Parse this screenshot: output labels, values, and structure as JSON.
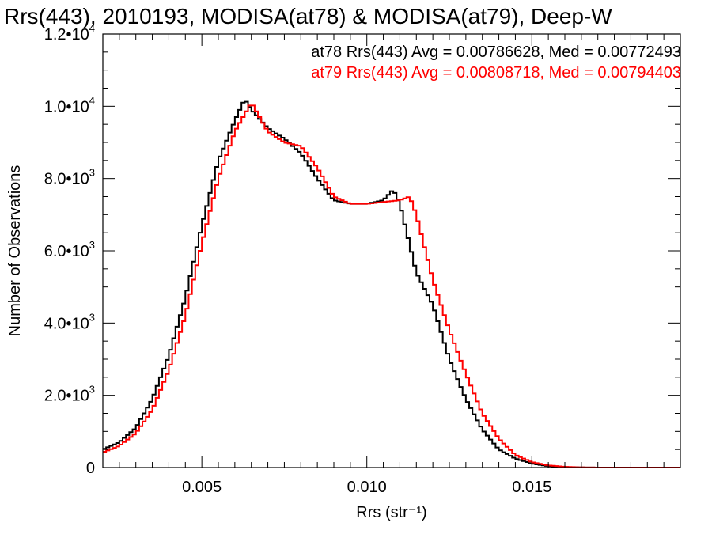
{
  "chart_data": {
    "type": "line",
    "title": "Rrs(443), 2010193, MODISA(at78) & MODISA(at79), Deep-W",
    "xlabel": "Rrs (str⁻¹)",
    "ylabel": "Number of Observations",
    "xlim": [
      0.002,
      0.0195
    ],
    "ylim": [
      0,
      12000
    ],
    "xticks": [
      {
        "value": 0.005,
        "label": "0.005"
      },
      {
        "value": 0.01,
        "label": "0.010"
      },
      {
        "value": 0.015,
        "label": "0.015"
      }
    ],
    "yticks": [
      {
        "value": 0,
        "mant": "0",
        "exp": ""
      },
      {
        "value": 2000,
        "mant": "2.0•10",
        "exp": "3"
      },
      {
        "value": 4000,
        "mant": "4.0•10",
        "exp": "3"
      },
      {
        "value": 6000,
        "mant": "6.0•10",
        "exp": "3"
      },
      {
        "value": 8000,
        "mant": "8.0•10",
        "exp": "3"
      },
      {
        "value": 10000,
        "mant": "1.0•10",
        "exp": "4"
      },
      {
        "value": 12000,
        "mant": "1.2•10",
        "exp": "4"
      }
    ],
    "legend_placement": "top-right",
    "annotations": [
      "at78 Rrs(443) Avg = 0.00786628, Med = 0.00772493",
      "at79 Rrs(443) Avg = 0.00808718, Med = 0.00794403"
    ],
    "series": [
      {
        "color": "#000000",
        "x": [
          0.002,
          0.0025,
          0.003,
          0.0035,
          0.004,
          0.0045,
          0.005,
          0.0055,
          0.006,
          0.0063,
          0.0065,
          0.007,
          0.0075,
          0.008,
          0.0085,
          0.009,
          0.0095,
          0.01,
          0.0105,
          0.0108,
          0.011,
          0.0115,
          0.012,
          0.0125,
          0.013,
          0.0135,
          0.014,
          0.0145,
          0.015,
          0.0155,
          0.016,
          0.0165,
          0.017,
          0.018,
          0.0195
        ],
        "values": [
          500,
          700,
          1100,
          1900,
          3100,
          4700,
          6700,
          8500,
          9600,
          10200,
          9900,
          9400,
          9100,
          8700,
          8000,
          7400,
          7300,
          7300,
          7400,
          7700,
          7300,
          5400,
          4500,
          3000,
          1900,
          1050,
          500,
          250,
          110,
          40,
          15,
          5,
          0,
          0,
          0
        ]
      },
      {
        "color": "#ff0000",
        "x": [
          0.002,
          0.0025,
          0.003,
          0.0035,
          0.004,
          0.0045,
          0.005,
          0.0055,
          0.006,
          0.0065,
          0.007,
          0.0075,
          0.008,
          0.0085,
          0.009,
          0.0095,
          0.01,
          0.0105,
          0.011,
          0.0113,
          0.0115,
          0.012,
          0.0125,
          0.013,
          0.0135,
          0.014,
          0.0145,
          0.015,
          0.0155,
          0.016,
          0.0165,
          0.017,
          0.018,
          0.0195
        ],
        "values": [
          420,
          600,
          950,
          1600,
          2700,
          4200,
          6200,
          8000,
          9300,
          10100,
          9300,
          9000,
          8900,
          8300,
          7500,
          7300,
          7300,
          7350,
          7400,
          7500,
          7000,
          5200,
          3800,
          2600,
          1500,
          800,
          350,
          150,
          60,
          20,
          5,
          0,
          0,
          0
        ]
      }
    ]
  }
}
